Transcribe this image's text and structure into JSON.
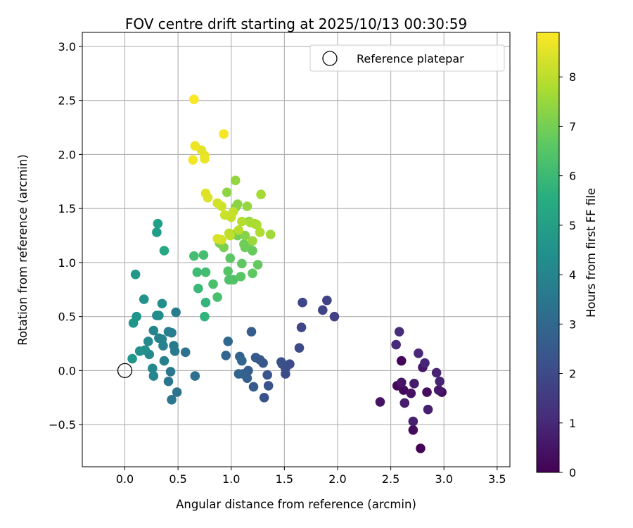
{
  "chart_data": {
    "type": "scatter",
    "title": "FOV centre drift starting at 2025/10/13 00:30:59",
    "xlabel": "Angular distance from reference (arcmin)",
    "ylabel": "Rotation from reference (arcmin)",
    "xlim": [
      -0.4,
      3.62
    ],
    "ylim": [
      -0.89,
      3.13
    ],
    "xticks": [
      0.0,
      0.5,
      1.0,
      1.5,
      2.0,
      2.5,
      3.0,
      3.5
    ],
    "xtick_labels": [
      "0.0",
      "0.5",
      "1.0",
      "1.5",
      "2.0",
      "2.5",
      "3.0",
      "3.5"
    ],
    "yticks": [
      -0.5,
      0.0,
      0.5,
      1.0,
      1.5,
      2.0,
      2.5,
      3.0
    ],
    "ytick_labels": [
      "−0.5",
      "0.0",
      "0.5",
      "1.0",
      "1.5",
      "2.0",
      "2.5",
      "3.0"
    ],
    "grid": true,
    "legend": {
      "placement": "top-right",
      "entries": [
        "Reference platepar"
      ]
    },
    "reference_point": {
      "x": 0.0,
      "y": 0.0
    },
    "colorbar": {
      "label": "Hours from first FF file",
      "range": [
        0,
        8.9
      ],
      "ticks": [
        0,
        1,
        2,
        3,
        4,
        5,
        6,
        7,
        8
      ],
      "tick_labels": [
        "0",
        "1",
        "2",
        "3",
        "4",
        "5",
        "6",
        "7",
        "8"
      ],
      "colormap": "viridis"
    },
    "points": [
      [
        2.78,
        -0.72,
        0.05
      ],
      [
        2.6,
        0.09,
        0.1
      ],
      [
        2.56,
        -0.14,
        0.15
      ],
      [
        2.62,
        -0.18,
        0.2
      ],
      [
        2.71,
        -0.55,
        0.25
      ],
      [
        2.84,
        -0.2,
        0.3
      ],
      [
        2.98,
        -0.2,
        0.35
      ],
      [
        2.69,
        -0.21,
        0.4
      ],
      [
        2.4,
        -0.29,
        0.45
      ],
      [
        2.6,
        -0.11,
        0.5
      ],
      [
        2.8,
        0.03,
        0.55
      ],
      [
        2.95,
        -0.18,
        0.6
      ],
      [
        2.72,
        -0.12,
        0.65
      ],
      [
        2.63,
        -0.3,
        0.7
      ],
      [
        2.71,
        -0.47,
        0.75
      ],
      [
        2.85,
        -0.36,
        0.8
      ],
      [
        2.96,
        -0.1,
        0.85
      ],
      [
        2.93,
        -0.02,
        0.9
      ],
      [
        2.82,
        0.07,
        0.95
      ],
      [
        2.76,
        0.16,
        1.0
      ],
      [
        2.55,
        0.24,
        1.05
      ],
      [
        2.58,
        0.36,
        1.1
      ],
      [
        1.97,
        0.5,
        1.7
      ],
      [
        1.9,
        0.65,
        1.75
      ],
      [
        1.86,
        0.56,
        1.8
      ],
      [
        1.67,
        0.63,
        1.85
      ],
      [
        1.66,
        0.4,
        1.9
      ],
      [
        1.64,
        0.21,
        1.95
      ],
      [
        1.51,
        -0.03,
        2.0
      ],
      [
        1.55,
        0.06,
        2.05
      ],
      [
        1.51,
        0.02,
        2.1
      ],
      [
        1.48,
        0.06,
        2.15
      ],
      [
        1.47,
        0.08,
        2.2
      ],
      [
        1.31,
        -0.25,
        2.25
      ],
      [
        1.35,
        -0.14,
        2.3
      ],
      [
        1.34,
        -0.04,
        2.35
      ],
      [
        1.3,
        0.07,
        2.4
      ],
      [
        1.27,
        0.1,
        2.45
      ],
      [
        1.23,
        0.12,
        2.5
      ],
      [
        1.21,
        -0.15,
        2.55
      ],
      [
        1.19,
        0.36,
        2.6
      ],
      [
        1.16,
        0.0,
        2.65
      ],
      [
        1.15,
        -0.07,
        2.7
      ],
      [
        1.11,
        -0.03,
        2.75
      ],
      [
        1.08,
        0.13,
        2.8
      ],
      [
        1.07,
        -0.03,
        2.85
      ],
      [
        1.1,
        0.09,
        2.9
      ],
      [
        0.95,
        0.14,
        2.95
      ],
      [
        0.97,
        0.27,
        3.0
      ],
      [
        0.66,
        -0.05,
        3.3
      ],
      [
        0.57,
        0.17,
        3.35
      ],
      [
        0.49,
        -0.2,
        3.4
      ],
      [
        0.44,
        -0.27,
        3.45
      ],
      [
        0.41,
        -0.1,
        3.5
      ],
      [
        0.43,
        -0.01,
        3.55
      ],
      [
        0.47,
        0.18,
        3.6
      ],
      [
        0.46,
        0.23,
        3.65
      ],
      [
        0.48,
        0.54,
        3.7
      ],
      [
        0.44,
        0.35,
        3.75
      ],
      [
        0.41,
        0.36,
        3.8
      ],
      [
        0.37,
        0.09,
        3.85
      ],
      [
        0.36,
        0.23,
        3.9
      ],
      [
        0.35,
        0.29,
        3.95
      ],
      [
        0.32,
        0.3,
        4.0
      ],
      [
        0.27,
        0.37,
        4.05
      ],
      [
        0.27,
        -0.05,
        4.1
      ],
      [
        0.26,
        0.02,
        4.15
      ],
      [
        0.23,
        0.15,
        4.2
      ],
      [
        0.22,
        0.27,
        4.25
      ],
      [
        0.3,
        0.51,
        4.3
      ],
      [
        0.32,
        0.51,
        4.35
      ],
      [
        0.35,
        0.62,
        4.4
      ],
      [
        0.19,
        0.19,
        4.45
      ],
      [
        0.14,
        0.18,
        4.5
      ],
      [
        0.18,
        0.66,
        4.55
      ],
      [
        0.11,
        0.5,
        4.6
      ],
      [
        0.08,
        0.44,
        4.65
      ],
      [
        0.07,
        0.11,
        4.7
      ],
      [
        0.1,
        0.89,
        4.75
      ],
      [
        0.3,
        1.28,
        4.9
      ],
      [
        0.31,
        1.36,
        5.0
      ],
      [
        0.37,
        1.11,
        5.3
      ],
      [
        0.75,
        0.5,
        5.8
      ],
      [
        0.76,
        0.63,
        5.9
      ],
      [
        0.69,
        0.76,
        6.0
      ],
      [
        0.68,
        0.91,
        6.1
      ],
      [
        0.76,
        0.91,
        6.15
      ],
      [
        0.65,
        1.06,
        6.2
      ],
      [
        0.74,
        1.07,
        6.25
      ],
      [
        0.87,
        0.68,
        6.3
      ],
      [
        0.83,
        0.8,
        6.35
      ],
      [
        0.98,
        0.84,
        6.4
      ],
      [
        1.02,
        0.84,
        6.45
      ],
      [
        0.97,
        0.92,
        6.5
      ],
      [
        1.09,
        0.87,
        6.55
      ],
      [
        0.99,
        1.04,
        6.6
      ],
      [
        1.1,
        0.99,
        6.65
      ],
      [
        1.2,
        0.9,
        6.7
      ],
      [
        1.25,
        0.98,
        6.75
      ],
      [
        1.2,
        1.11,
        6.8
      ],
      [
        1.16,
        1.16,
        6.85
      ],
      [
        1.13,
        1.14,
        6.9
      ],
      [
        1.12,
        1.17,
        6.95
      ],
      [
        1.06,
        1.25,
        7.0
      ],
      [
        1.02,
        1.26,
        7.05
      ],
      [
        0.93,
        1.14,
        7.1
      ],
      [
        0.89,
        1.18,
        7.15
      ],
      [
        1.04,
        1.51,
        7.2
      ],
      [
        1.13,
        1.25,
        7.25
      ],
      [
        1.17,
        1.38,
        7.3
      ],
      [
        1.06,
        1.54,
        7.35
      ],
      [
        0.96,
        1.65,
        7.4
      ],
      [
        1.04,
        1.76,
        7.45
      ],
      [
        1.15,
        1.52,
        7.5
      ],
      [
        1.2,
        1.2,
        7.55
      ],
      [
        1.22,
        1.36,
        7.6
      ],
      [
        1.37,
        1.26,
        7.65
      ],
      [
        1.28,
        1.63,
        7.7
      ],
      [
        1.18,
        1.37,
        7.75
      ],
      [
        1.24,
        1.35,
        7.8
      ],
      [
        1.27,
        1.28,
        7.85
      ],
      [
        1.1,
        1.38,
        7.9
      ],
      [
        1.07,
        1.3,
        7.95
      ],
      [
        0.98,
        1.27,
        8.0
      ],
      [
        0.99,
        1.25,
        8.05
      ],
      [
        1.02,
        1.47,
        8.1
      ],
      [
        1.0,
        1.42,
        8.15
      ],
      [
        0.94,
        1.44,
        8.2
      ],
      [
        0.91,
        1.52,
        8.25
      ],
      [
        0.87,
        1.55,
        8.3
      ],
      [
        0.91,
        1.21,
        8.35
      ],
      [
        0.87,
        1.22,
        8.4
      ],
      [
        0.78,
        1.6,
        8.45
      ],
      [
        0.76,
        1.64,
        8.5
      ],
      [
        0.72,
        2.04,
        8.55
      ],
      [
        0.75,
        1.99,
        8.6
      ],
      [
        0.75,
        1.96,
        8.65
      ],
      [
        0.66,
        2.08,
        8.7
      ],
      [
        0.64,
        1.95,
        8.75
      ],
      [
        0.93,
        2.19,
        8.8
      ],
      [
        0.65,
        2.51,
        8.85
      ]
    ]
  }
}
